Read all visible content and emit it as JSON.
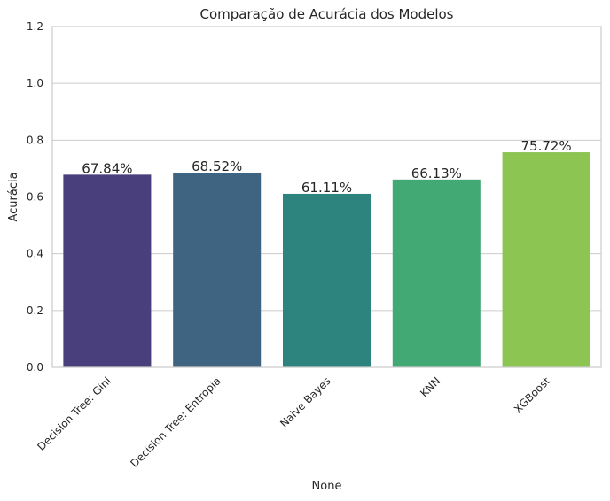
{
  "chart_data": {
    "type": "bar",
    "title": "Comparação de Acurácia dos Modelos",
    "xlabel": "None",
    "ylabel": "Acurácia",
    "ylim": [
      0,
      1.2
    ],
    "yticks": [
      "0.0",
      "0.2",
      "0.4",
      "0.6",
      "0.8",
      "1.0",
      "1.2"
    ],
    "grid": true,
    "categories": [
      "Decision Tree: Gini",
      "Decision Tree: Entropia",
      "Naive Bayes",
      "KNN",
      "XGBoost"
    ],
    "values": [
      0.6784,
      0.6852,
      0.6111,
      0.6613,
      0.7572
    ],
    "value_labels": [
      "67.84%",
      "68.52%",
      "61.11%",
      "66.13%",
      "75.72%"
    ],
    "colors": [
      "#4a3f7d",
      "#3e6482",
      "#2d847e",
      "#42a874",
      "#8dc553"
    ]
  }
}
